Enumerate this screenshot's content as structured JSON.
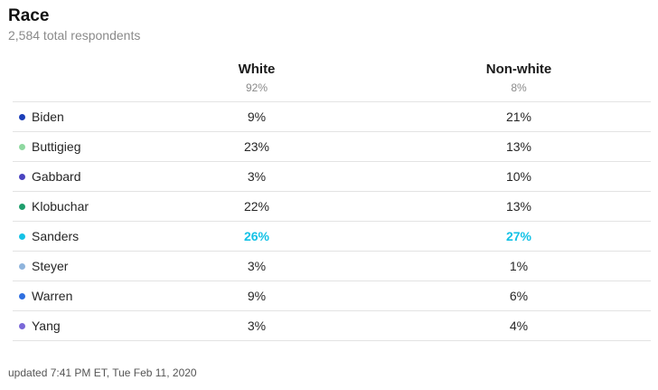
{
  "header": {
    "title": "Race",
    "subtitle": "2,584 total respondents"
  },
  "columns": [
    {
      "name": "White",
      "pct": "92%"
    },
    {
      "name": "Non-white",
      "pct": "8%"
    }
  ],
  "rows": [
    {
      "candidate": "Biden",
      "color": "#1c3fb8",
      "white": "9%",
      "nonwhite": "21%",
      "lead": false
    },
    {
      "candidate": "Buttigieg",
      "color": "#8ed8a0",
      "white": "23%",
      "nonwhite": "13%",
      "lead": false
    },
    {
      "candidate": "Gabbard",
      "color": "#4a44c0",
      "white": "3%",
      "nonwhite": "10%",
      "lead": false
    },
    {
      "candidate": "Klobuchar",
      "color": "#1f9e6c",
      "white": "22%",
      "nonwhite": "13%",
      "lead": false
    },
    {
      "candidate": "Sanders",
      "color": "#14c2e6",
      "white": "26%",
      "nonwhite": "27%",
      "lead": true
    },
    {
      "candidate": "Steyer",
      "color": "#8fb4dc",
      "white": "3%",
      "nonwhite": "1%",
      "lead": false
    },
    {
      "candidate": "Warren",
      "color": "#2f6fe0",
      "white": "9%",
      "nonwhite": "6%",
      "lead": false
    },
    {
      "candidate": "Yang",
      "color": "#7a68d8",
      "white": "3%",
      "nonwhite": "4%",
      "lead": false
    }
  ],
  "footer": {
    "updated": "updated 7:41 PM ET, Tue Feb 11, 2020"
  }
}
